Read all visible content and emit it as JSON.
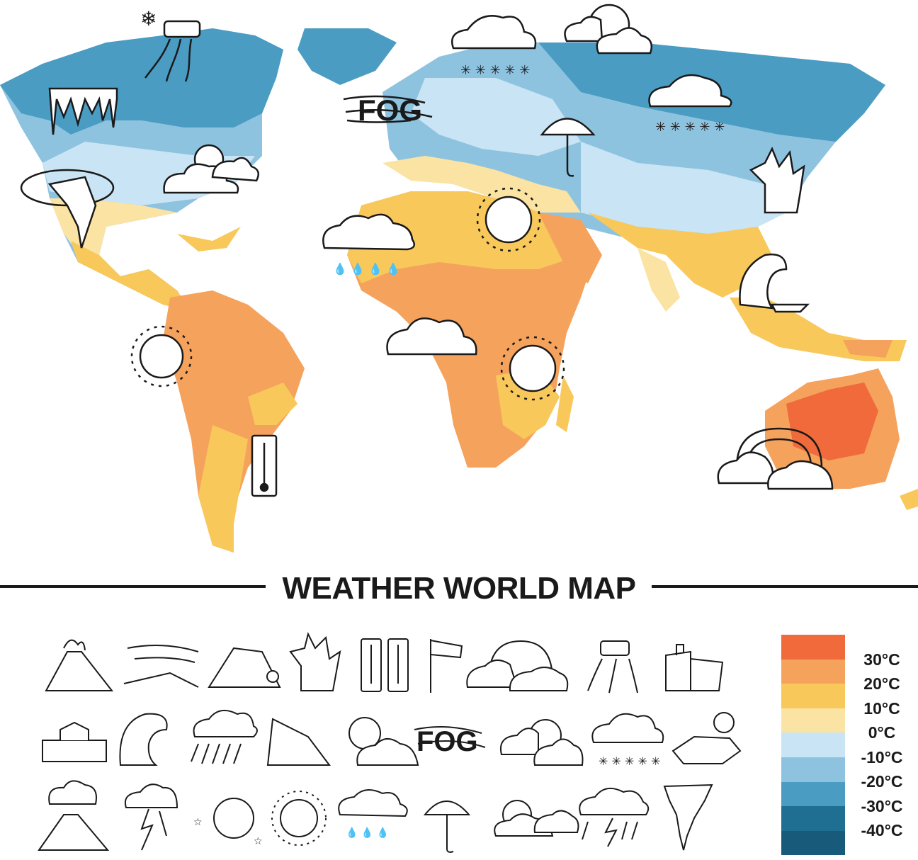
{
  "title": "WEATHER WORLD MAP",
  "legend": {
    "entries": [
      {
        "label": "30°C",
        "color": "#f06a3c"
      },
      {
        "label": "20°C",
        "color": "#f5a25d"
      },
      {
        "label": "10°C",
        "color": "#f8c85a"
      },
      {
        "label": "0°C",
        "color": "#fbe3a4"
      },
      {
        "label": "-10°C",
        "color": "#c9e4f4"
      },
      {
        "label": "-20°C",
        "color": "#8ec3e0"
      },
      {
        "label": "-30°C",
        "color": "#4a9cc3"
      },
      {
        "label": "-40°C",
        "color": "#1f6f93"
      }
    ],
    "extra_bottom_color": "#175a7a"
  },
  "map_labels": {
    "fog": "FOG"
  },
  "icon_legend": [
    [
      "volcano-icon",
      "wind-icon",
      "landslide-icon",
      "wildfire-icon",
      "thermometers-icon",
      "windsock-icon",
      "rainbow-icon",
      "icy-road-icon",
      "earthquake-icon"
    ],
    [
      "flood-icon",
      "tsunami-icon",
      "rain-cloud-icon",
      "avalanche-icon",
      "sun-cloud-icon",
      "fog-icon",
      "night-cloud-icon",
      "snow-cloud-icon",
      "drought-icon"
    ],
    [
      "eruption-icon",
      "lightning-icon",
      "moon-stars-icon",
      "sun-icon",
      "rain-drops-icon",
      "umbrella-icon",
      "partly-cloudy-icon",
      "storm-icon",
      "tornado-icon"
    ]
  ],
  "icon_fog_text": "FOG"
}
